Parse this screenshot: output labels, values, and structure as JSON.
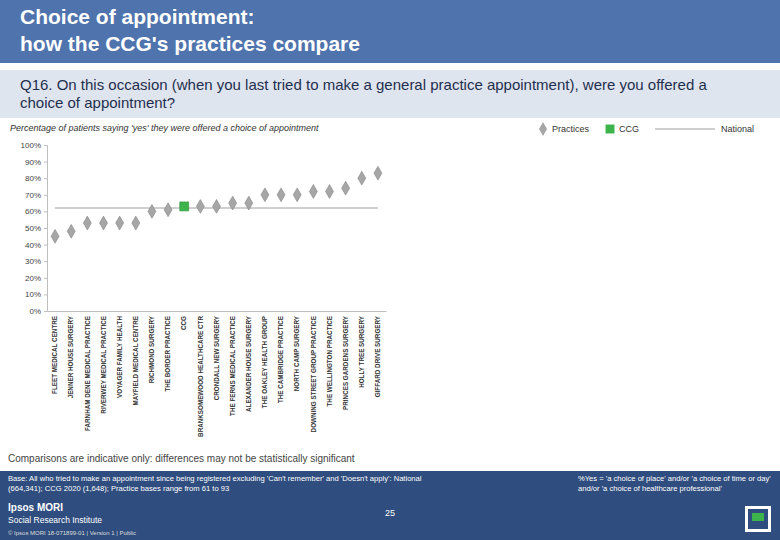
{
  "chart_data": {
    "type": "scatter",
    "title": "Choice of appointment: how the CCG's practices compare",
    "subtitle": "Q16. On this occasion (when you last tried to make a general practice appointment), were you offered a choice of appointment?",
    "y_label": "Percentage of patients saying 'yes' they were offered a choice of appointment",
    "categories": [
      "FLEET MEDICAL CENTRE",
      "JENNER HOUSE SURGERY",
      "FARNHAM DENE MEDICAL PRACTICE",
      "RIVERWEY MEDICAL PRACTICE",
      "VOYAGER FAMILY HEALTH",
      "MAYFIELD MEDICAL CENTRE",
      "RICHMOND SURGERY",
      "THE BORDER PRACTICE",
      "CCG",
      "BRANKSOMEWOOD HEALTHCARE CTR",
      "CRONDALL NEW SURGERY",
      "THE FERNS MEDICAL PRACTICE",
      "ALEXANDER HOUSE SURGERY",
      "THE OAKLEY HEALTH GROUP",
      "THE CAMBRIDGE PRACTICE",
      "NORTH CAMP SURGERY",
      "DOWNING STREET GROUP PRACTICE",
      "THE WELLINGTON PRACTICE",
      "PRINCES GARDENS SURGERY",
      "HOLLY TREE SURGERY",
      "GIFFARD DRIVE SURGERY"
    ],
    "series": [
      {
        "name": "Practices",
        "type": "scatter",
        "marker": "diamond",
        "color": "#a6a6a6",
        "values": [
          45,
          48,
          53,
          53,
          53,
          53,
          60,
          61,
          null,
          63,
          63,
          65,
          65,
          70,
          70,
          70,
          72,
          72,
          74,
          80,
          83
        ]
      },
      {
        "name": "CCG",
        "type": "scatter",
        "marker": "square",
        "color": "#3cb44b",
        "values": [
          null,
          null,
          null,
          null,
          null,
          null,
          null,
          null,
          63,
          null,
          null,
          null,
          null,
          null,
          null,
          null,
          null,
          null,
          null,
          null,
          null
        ]
      },
      {
        "name": "National",
        "type": "line",
        "line_style": "solid",
        "color": "#bfbfbf",
        "values": [
          62,
          62,
          62,
          62,
          62,
          62,
          62,
          62,
          62,
          62,
          62,
          62,
          62,
          62,
          62,
          62,
          62,
          62,
          62,
          62,
          62
        ]
      }
    ],
    "ylim": [
      0,
      100
    ],
    "yticks": [
      {
        "value": 0,
        "label": "0%"
      },
      {
        "value": 10,
        "label": "10%"
      },
      {
        "value": 20,
        "label": "20%"
      },
      {
        "value": 30,
        "label": "30%"
      },
      {
        "value": 40,
        "label": "40%"
      },
      {
        "value": 50,
        "label": "50%"
      },
      {
        "value": 60,
        "label": "60%"
      },
      {
        "value": 70,
        "label": "70%"
      },
      {
        "value": 80,
        "label": "80%"
      },
      {
        "value": 90,
        "label": "90%"
      },
      {
        "value": 100,
        "label": "100%"
      }
    ],
    "grid": false,
    "legend": "top-right"
  },
  "footer": {
    "caveat": "Comparisons are indicative only: differences may not be statistically significant",
    "base": "Base: All who tried to make an appointment since being registered excluding 'Can't remember' and 'Doesn't apply': National (664,341); CCG 2020 (1,648); Practice bases range from 61 to 93",
    "definition": "%Yes = 'a choice of place' and/or 'a choice of time or day' and/or 'a choice of healthcare professional'",
    "page": 25,
    "brand": "Ipsos MORI",
    "brand_sub": "Social Research Institute",
    "copyright": "© Ipsos MORI 18-071899-01 | Version 1 | Public"
  }
}
